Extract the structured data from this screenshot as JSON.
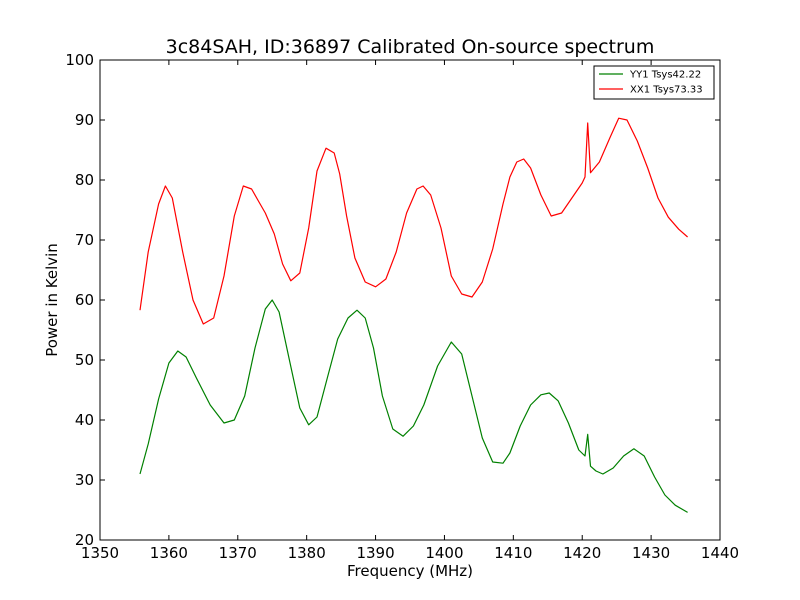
{
  "chart_data": {
    "type": "line",
    "title": "3c84SAH, ID:36897 Calibrated On-source spectrum",
    "xlabel": "Frequency (MHz)",
    "ylabel": "Power in Kelvin",
    "xlim": [
      1350,
      1440
    ],
    "ylim": [
      20,
      100
    ],
    "xticks": [
      1350,
      1360,
      1370,
      1380,
      1390,
      1400,
      1410,
      1420,
      1430,
      1440
    ],
    "yticks": [
      20,
      30,
      40,
      50,
      60,
      70,
      80,
      90,
      100
    ],
    "grid": false,
    "legend_position": "top-right",
    "series": [
      {
        "name": "YY1 Tsys42.22",
        "color": "#008000",
        "x": [
          1355.8,
          1357,
          1358.5,
          1360,
          1361.3,
          1362.5,
          1364,
          1366,
          1368,
          1369.5,
          1371,
          1372.5,
          1374,
          1375,
          1376,
          1377.5,
          1379,
          1380.3,
          1381.5,
          1383,
          1384.5,
          1386,
          1387.3,
          1388.5,
          1389.7,
          1391,
          1392.5,
          1394,
          1395.5,
          1397,
          1399,
          1401,
          1402.5,
          1404,
          1405.5,
          1407,
          1408.5,
          1409.5,
          1411,
          1412.5,
          1414,
          1415.2,
          1416.5,
          1418,
          1419.5,
          1420.4,
          1420.8,
          1421.2,
          1422,
          1423,
          1424.5,
          1426,
          1427.5,
          1429,
          1430.5,
          1432,
          1433.5,
          1435.3
        ],
        "values": [
          31,
          36,
          43.5,
          49.5,
          51.5,
          50.5,
          47,
          42.5,
          39.5,
          40,
          44,
          52,
          58.5,
          60,
          58,
          50,
          42,
          39.2,
          40.5,
          47,
          53.5,
          57,
          58.3,
          57,
          52,
          44,
          38.5,
          37.3,
          39,
          42.5,
          49,
          53,
          51,
          44,
          37,
          33,
          32.8,
          34.5,
          39,
          42.5,
          44.2,
          44.5,
          43.2,
          39.5,
          35,
          34,
          37.6,
          32.3,
          31.5,
          31,
          32,
          34,
          35.2,
          34,
          30.5,
          27.5,
          25.8,
          24.6
        ]
      },
      {
        "name": "XX1 Tsys73.33",
        "color": "#ff0000",
        "x": [
          1355.8,
          1357,
          1358.5,
          1359.5,
          1360.5,
          1362,
          1363.5,
          1365,
          1366.5,
          1368,
          1369.5,
          1370.8,
          1372,
          1373,
          1374,
          1375.3,
          1376.5,
          1377.7,
          1379,
          1380.3,
          1381.5,
          1382.8,
          1384,
          1384.8,
          1385.8,
          1387,
          1388.5,
          1390,
          1391.5,
          1393,
          1394.5,
          1396,
          1396.9,
          1398,
          1399.5,
          1401,
          1402.5,
          1404,
          1405.5,
          1407,
          1408.5,
          1409.5,
          1410.5,
          1411.5,
          1412.5,
          1414,
          1415.5,
          1417,
          1418.5,
          1420,
          1420.4,
          1420.8,
          1421.2,
          1422.5,
          1424,
          1425.3,
          1426.5,
          1428,
          1429.5,
          1431,
          1432.5,
          1434,
          1435.3
        ],
        "values": [
          58.3,
          68,
          76,
          79,
          77,
          68,
          60,
          56,
          57,
          64,
          74,
          79,
          78.5,
          76.5,
          74.5,
          71,
          66,
          63.2,
          64.5,
          72,
          81.5,
          85.3,
          84.5,
          81,
          74,
          67,
          63,
          62.2,
          63.5,
          68,
          74.5,
          78.5,
          79,
          77.5,
          72,
          64,
          61,
          60.5,
          63,
          68.5,
          76,
          80.5,
          83,
          83.5,
          82,
          77.5,
          74,
          74.5,
          77,
          79.5,
          80.5,
          89.5,
          81.2,
          83,
          87,
          90.3,
          90,
          86.5,
          82,
          77,
          73.8,
          71.8,
          70.5
        ]
      }
    ]
  }
}
